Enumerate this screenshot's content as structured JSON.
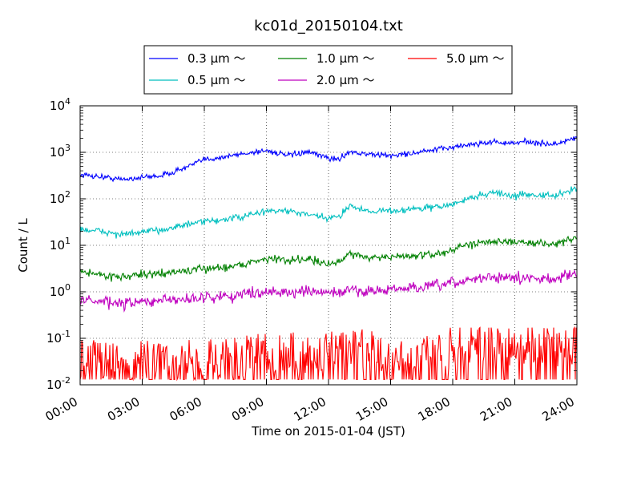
{
  "chart_data": {
    "type": "line",
    "title": "kc01d_20150104.txt",
    "xlabel": "Time on 2015-01-04 (JST)",
    "ylabel": "Count / L",
    "yscale": "log",
    "ylim": [
      0.01,
      10000
    ],
    "xlim": [
      0,
      24
    ],
    "grid": true,
    "legend_position": "top-center",
    "x_tick_labels": [
      "00:00",
      "03:00",
      "06:00",
      "09:00",
      "12:00",
      "15:00",
      "18:00",
      "21:00",
      "24:00"
    ],
    "y_tick_labels": [
      {
        "base": "10",
        "exp": "-2"
      },
      {
        "base": "10",
        "exp": "-1"
      },
      {
        "base": "10",
        "exp": "0"
      },
      {
        "base": "10",
        "exp": "1"
      },
      {
        "base": "10",
        "exp": "2"
      },
      {
        "base": "10",
        "exp": "3"
      },
      {
        "base": "10",
        "exp": "4"
      }
    ],
    "x": [
      0,
      1,
      2,
      3,
      4,
      5,
      6,
      7,
      8,
      9,
      10,
      11,
      12,
      12.5,
      13,
      13.5,
      14,
      15,
      16,
      17,
      18,
      19,
      20,
      21,
      21.5,
      22,
      23,
      24
    ],
    "series": [
      {
        "name": "0.3 μm ～",
        "color": "#0000ff",
        "noise": 0.05,
        "values": [
          330,
          300,
          260,
          290,
          320,
          450,
          700,
          800,
          950,
          1100,
          850,
          1000,
          760,
          700,
          1050,
          950,
          900,
          850,
          950,
          1100,
          1300,
          1500,
          1700,
          1500,
          1800,
          1550,
          1500,
          2100
        ]
      },
      {
        "name": "0.5 μm ～",
        "color": "#00bfbf",
        "noise": 0.06,
        "values": [
          22,
          20,
          17,
          19,
          22,
          27,
          32,
          36,
          42,
          55,
          55,
          45,
          38,
          40,
          75,
          60,
          55,
          55,
          60,
          65,
          75,
          110,
          140,
          110,
          130,
          120,
          115,
          170
        ]
      },
      {
        "name": "1.0 μm ～",
        "color": "#008000",
        "noise": 0.07,
        "values": [
          2.8,
          2.3,
          2.1,
          2.3,
          2.5,
          2.8,
          3.1,
          3.4,
          4.0,
          5.3,
          4.7,
          5.3,
          3.8,
          4.2,
          7.0,
          6.0,
          5.5,
          5.5,
          6.0,
          6.2,
          8.0,
          11,
          13,
          11,
          12,
          11,
          11,
          14
        ]
      },
      {
        "name": "2.0 μm ～",
        "color": "#bf00bf",
        "noise": 0.1,
        "values": [
          0.7,
          0.6,
          0.55,
          0.6,
          0.65,
          0.7,
          0.75,
          0.8,
          0.9,
          1.05,
          0.95,
          1.0,
          0.95,
          0.95,
          1.1,
          1.05,
          1.05,
          1.1,
          1.2,
          1.3,
          1.5,
          1.9,
          2.1,
          1.9,
          2.0,
          1.9,
          2.0,
          2.4
        ]
      },
      {
        "name": "5.0 μm ～",
        "color": "#ff0000",
        "noise": "spiky",
        "values": [
          0.03,
          0.03,
          0.03,
          0.03,
          0.03,
          0.03,
          0.035,
          0.035,
          0.04,
          0.04,
          0.045,
          0.045,
          0.05,
          0.05,
          0.05,
          0.05,
          0.05,
          0.05,
          0.05,
          0.05,
          0.055,
          0.06,
          0.06,
          0.06,
          0.06,
          0.06,
          0.06,
          0.07
        ]
      }
    ],
    "legend_columns": [
      [
        "0.3 μm ～",
        "0.5 μm ～"
      ],
      [
        "1.0 μm ～",
        "2.0 μm ～"
      ],
      [
        "5.0 μm ～"
      ]
    ]
  }
}
